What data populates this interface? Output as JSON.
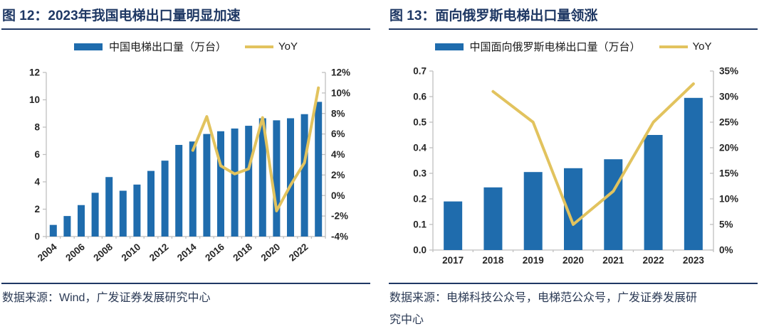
{
  "colors": {
    "navy": "#1F3864",
    "bar_blue": "#1F6CAD",
    "line_yellow": "#E2C35E",
    "axis_gray": "#BFBFBF",
    "tick_text": "#262626",
    "footer_text": "#2B3A55"
  },
  "chart_data": [
    {
      "type": "bar+line",
      "title": "图 12：2023年我国电梯出口量明显加速",
      "source_lines": [
        "数据来源：Wind，广发证券发展研究中心"
      ],
      "categories": [
        "2004",
        "2005",
        "2006",
        "2007",
        "2008",
        "2009",
        "2010",
        "2011",
        "2012",
        "2013",
        "2014",
        "2015",
        "2016",
        "2017",
        "2018",
        "2019",
        "2020",
        "2021",
        "2022",
        "2023"
      ],
      "x_ticks": [
        "2004",
        "2006",
        "2008",
        "2010",
        "2012",
        "2014",
        "2016",
        "2018",
        "2020",
        "2022"
      ],
      "series": [
        {
          "name": "中国电梯出口量（万台）",
          "type": "bar",
          "axis": "left",
          "values": [
            0.85,
            1.5,
            2.3,
            3.2,
            4.35,
            3.35,
            3.8,
            4.8,
            5.55,
            6.7,
            6.95,
            7.5,
            7.7,
            7.9,
            8.1,
            8.65,
            8.5,
            8.65,
            8.95,
            9.85
          ]
        },
        {
          "name": "YoY",
          "type": "line",
          "axis": "right",
          "values": [
            null,
            null,
            null,
            null,
            null,
            null,
            null,
            null,
            null,
            null,
            4.4,
            7.7,
            2.9,
            2.1,
            2.6,
            7.6,
            -1.5,
            1.0,
            3.2,
            10.5
          ]
        }
      ],
      "left_axis": {
        "min": 0,
        "max": 12,
        "ticks": [
          "0",
          "2",
          "4",
          "6",
          "8",
          "10",
          "12"
        ]
      },
      "right_axis": {
        "min": -4,
        "max": 12,
        "ticks": [
          "-4%",
          "-2%",
          "0%",
          "2%",
          "4%",
          "6%",
          "8%",
          "10%",
          "12%"
        ]
      },
      "grid": false,
      "legend_position": "top"
    },
    {
      "type": "bar+line",
      "title": "图 13：面向俄罗斯电梯出口量领涨",
      "source_lines": [
        "数据来源：电梯科技公众号，电梯范公众号，广发证券发展研",
        "究中心"
      ],
      "categories": [
        "2017",
        "2018",
        "2019",
        "2020",
        "2021",
        "2022",
        "2023"
      ],
      "x_ticks": [
        "2017",
        "2018",
        "2019",
        "2020",
        "2021",
        "2022",
        "2023"
      ],
      "series": [
        {
          "name": "中国面向俄罗斯电梯出口量（万台）",
          "type": "bar",
          "axis": "left",
          "values": [
            0.19,
            0.245,
            0.305,
            0.32,
            0.355,
            0.45,
            0.595
          ]
        },
        {
          "name": "YoY",
          "type": "line",
          "axis": "right",
          "values": [
            null,
            31,
            25,
            5,
            11.5,
            25,
            32.5
          ]
        }
      ],
      "left_axis": {
        "min": 0,
        "max": 0.7,
        "ticks": [
          "0.0",
          "0.1",
          "0.2",
          "0.3",
          "0.4",
          "0.5",
          "0.6",
          "0.7"
        ]
      },
      "right_axis": {
        "min": 0,
        "max": 35,
        "ticks": [
          "0%",
          "5%",
          "10%",
          "15%",
          "20%",
          "25%",
          "30%",
          "35%"
        ]
      },
      "grid": false,
      "legend_position": "top"
    }
  ]
}
